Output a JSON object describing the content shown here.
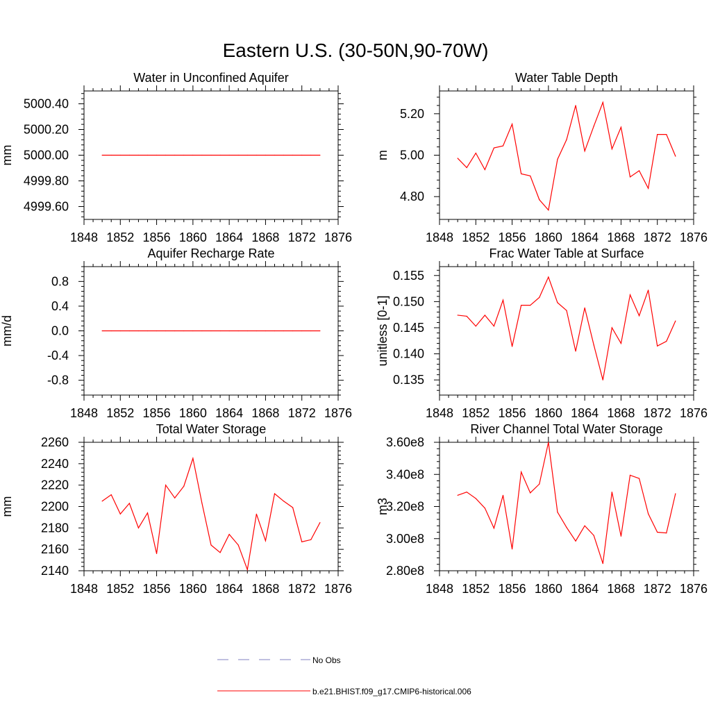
{
  "figure_title": "Eastern U.S. (30-50N,90-70W)",
  "legend": {
    "entries": [
      {
        "label": "No Obs",
        "color": "#8080c0",
        "style": "dashed"
      },
      {
        "label": "b.e21.BHIST.f09_g17.CMIP6-historical.006",
        "color": "#ff0000",
        "style": "solid"
      }
    ]
  },
  "colors": {
    "series": "#ff0000",
    "axis": "#000000"
  },
  "chart_data": [
    {
      "type": "line",
      "title": "Water in Unconfined Aquifer",
      "xlabel": "",
      "ylabel": "mm",
      "xlim": [
        1848,
        1876
      ],
      "ylim": [
        4999.5,
        5000.5
      ],
      "xticks": [
        1848,
        1852,
        1856,
        1860,
        1864,
        1868,
        1872,
        1876
      ],
      "yticks": [
        4999.6,
        4999.8,
        5000.0,
        5000.2,
        5000.4
      ],
      "ytick_labels": [
        "4999.60",
        "4999.80",
        "5000.00",
        "5000.20",
        "5000.40"
      ],
      "x": [
        1850,
        1851,
        1852,
        1853,
        1854,
        1855,
        1856,
        1857,
        1858,
        1859,
        1860,
        1861,
        1862,
        1863,
        1864,
        1865,
        1866,
        1867,
        1868,
        1869,
        1870,
        1871,
        1872,
        1873,
        1874
      ],
      "series": [
        {
          "values": [
            5000,
            5000,
            5000,
            5000,
            5000,
            5000,
            5000,
            5000,
            5000,
            5000,
            5000,
            5000,
            5000,
            5000,
            5000,
            5000,
            5000,
            5000,
            5000,
            5000,
            5000,
            5000,
            5000,
            5000,
            5000
          ]
        }
      ]
    },
    {
      "type": "line",
      "title": "Water Table Depth",
      "xlabel": "",
      "ylabel": "m",
      "xlim": [
        1848,
        1876
      ],
      "ylim": [
        4.69,
        5.31
      ],
      "xticks": [
        1848,
        1852,
        1856,
        1860,
        1864,
        1868,
        1872,
        1876
      ],
      "yticks": [
        4.8,
        5.0,
        5.2
      ],
      "ytick_labels": [
        "4.80",
        "5.00",
        "5.20"
      ],
      "x": [
        1850,
        1851,
        1852,
        1853,
        1854,
        1855,
        1856,
        1857,
        1858,
        1859,
        1860,
        1861,
        1862,
        1863,
        1864,
        1865,
        1866,
        1867,
        1868,
        1869,
        1870,
        1871,
        1872,
        1873,
        1874
      ],
      "series": [
        {
          "values": [
            4.985,
            4.94,
            5.01,
            4.93,
            5.035,
            5.045,
            5.15,
            4.91,
            4.9,
            4.785,
            4.735,
            4.98,
            5.075,
            5.24,
            5.02,
            5.14,
            5.255,
            5.03,
            5.135,
            4.895,
            4.925,
            4.84,
            5.1,
            5.1,
            4.995
          ]
        }
      ]
    },
    {
      "type": "line",
      "title": "Aquifer Recharge Rate",
      "xlabel": "",
      "ylabel": "mm/d",
      "xlim": [
        1848,
        1876
      ],
      "ylim": [
        -1.04,
        1.04
      ],
      "xticks": [
        1848,
        1852,
        1856,
        1860,
        1864,
        1868,
        1872,
        1876
      ],
      "yticks": [
        -0.8,
        -0.4,
        0.0,
        0.4,
        0.8
      ],
      "ytick_labels": [
        "-0.8",
        "-0.4",
        "0.0",
        "0.4",
        "0.8"
      ],
      "x": [
        1850,
        1851,
        1852,
        1853,
        1854,
        1855,
        1856,
        1857,
        1858,
        1859,
        1860,
        1861,
        1862,
        1863,
        1864,
        1865,
        1866,
        1867,
        1868,
        1869,
        1870,
        1871,
        1872,
        1873,
        1874
      ],
      "series": [
        {
          "values": [
            0,
            0,
            0,
            0,
            0,
            0,
            0,
            0,
            0,
            0,
            0,
            0,
            0,
            0,
            0,
            0,
            0,
            0,
            0,
            0,
            0,
            0,
            0,
            0,
            0
          ]
        }
      ]
    },
    {
      "type": "line",
      "title": "Frac Water Table at Surface",
      "xlabel": "",
      "ylabel": "unitless [0-1]",
      "xlim": [
        1848,
        1876
      ],
      "ylim": [
        0.1321,
        0.1567
      ],
      "xticks": [
        1848,
        1852,
        1856,
        1860,
        1864,
        1868,
        1872,
        1876
      ],
      "yticks": [
        0.135,
        0.14,
        0.145,
        0.15,
        0.155
      ],
      "ytick_labels": [
        "0.135",
        "0.140",
        "0.145",
        "0.150",
        "0.155"
      ],
      "x": [
        1850,
        1851,
        1852,
        1853,
        1854,
        1855,
        1856,
        1857,
        1858,
        1859,
        1860,
        1861,
        1862,
        1863,
        1864,
        1865,
        1866,
        1867,
        1868,
        1869,
        1870,
        1871,
        1872,
        1873,
        1874
      ],
      "series": [
        {
          "values": [
            0.1474,
            0.1472,
            0.1453,
            0.1474,
            0.1453,
            0.1503,
            0.1414,
            0.1493,
            0.1493,
            0.1508,
            0.1547,
            0.1498,
            0.1483,
            0.1405,
            0.1488,
            0.1417,
            0.135,
            0.145,
            0.142,
            0.1513,
            0.1473,
            0.1522,
            0.1415,
            0.1424,
            0.1463
          ]
        }
      ]
    },
    {
      "type": "line",
      "title": "Total Water Storage",
      "xlabel": "",
      "ylabel": "mm",
      "xlim": [
        1848,
        1876
      ],
      "ylim": [
        2140,
        2260
      ],
      "xticks": [
        1848,
        1852,
        1856,
        1860,
        1864,
        1868,
        1872,
        1876
      ],
      "yticks": [
        2140,
        2160,
        2180,
        2200,
        2220,
        2240,
        2260
      ],
      "ytick_labels": [
        "2140",
        "2160",
        "2180",
        "2200",
        "2220",
        "2240",
        "2260"
      ],
      "x": [
        1850,
        1851,
        1852,
        1853,
        1854,
        1855,
        1856,
        1857,
        1858,
        1859,
        1860,
        1861,
        1862,
        1863,
        1864,
        1865,
        1866,
        1867,
        1868,
        1869,
        1870,
        1871,
        1872,
        1873,
        1874
      ],
      "series": [
        {
          "values": [
            2205,
            2211,
            2193,
            2203,
            2180,
            2194,
            2156,
            2220,
            2208,
            2219,
            2245,
            2203,
            2164,
            2157,
            2174,
            2164,
            2141,
            2193,
            2168,
            2212,
            2205,
            2199,
            2167,
            2169,
            2185
          ]
        }
      ]
    },
    {
      "type": "line",
      "title": "River Channel Total Water Storage",
      "xlabel": "",
      "ylabel": "m3",
      "xlim": [
        1848,
        1876
      ],
      "ylim": [
        280000000,
        360000000
      ],
      "xticks": [
        1848,
        1852,
        1856,
        1860,
        1864,
        1868,
        1872,
        1876
      ],
      "yticks": [
        280000000,
        300000000,
        320000000,
        340000000,
        360000000
      ],
      "ytick_labels": [
        "2.80e8",
        "3.00e8",
        "3.20e8",
        "3.40e8",
        "3.60e8"
      ],
      "x": [
        1850,
        1851,
        1852,
        1853,
        1854,
        1855,
        1856,
        1857,
        1858,
        1859,
        1860,
        1861,
        1862,
        1863,
        1864,
        1865,
        1866,
        1867,
        1868,
        1869,
        1870,
        1871,
        1872,
        1873,
        1874
      ],
      "series": [
        {
          "values": [
            327000000,
            329000000,
            325000000,
            319000000,
            306500000,
            327000000,
            293500000,
            341500000,
            328500000,
            334000000,
            360000000,
            316500000,
            307000000,
            298500000,
            308000000,
            302000000,
            284500000,
            329000000,
            301500000,
            339500000,
            337500000,
            315500000,
            304000000,
            303500000,
            328000000
          ]
        }
      ]
    }
  ]
}
